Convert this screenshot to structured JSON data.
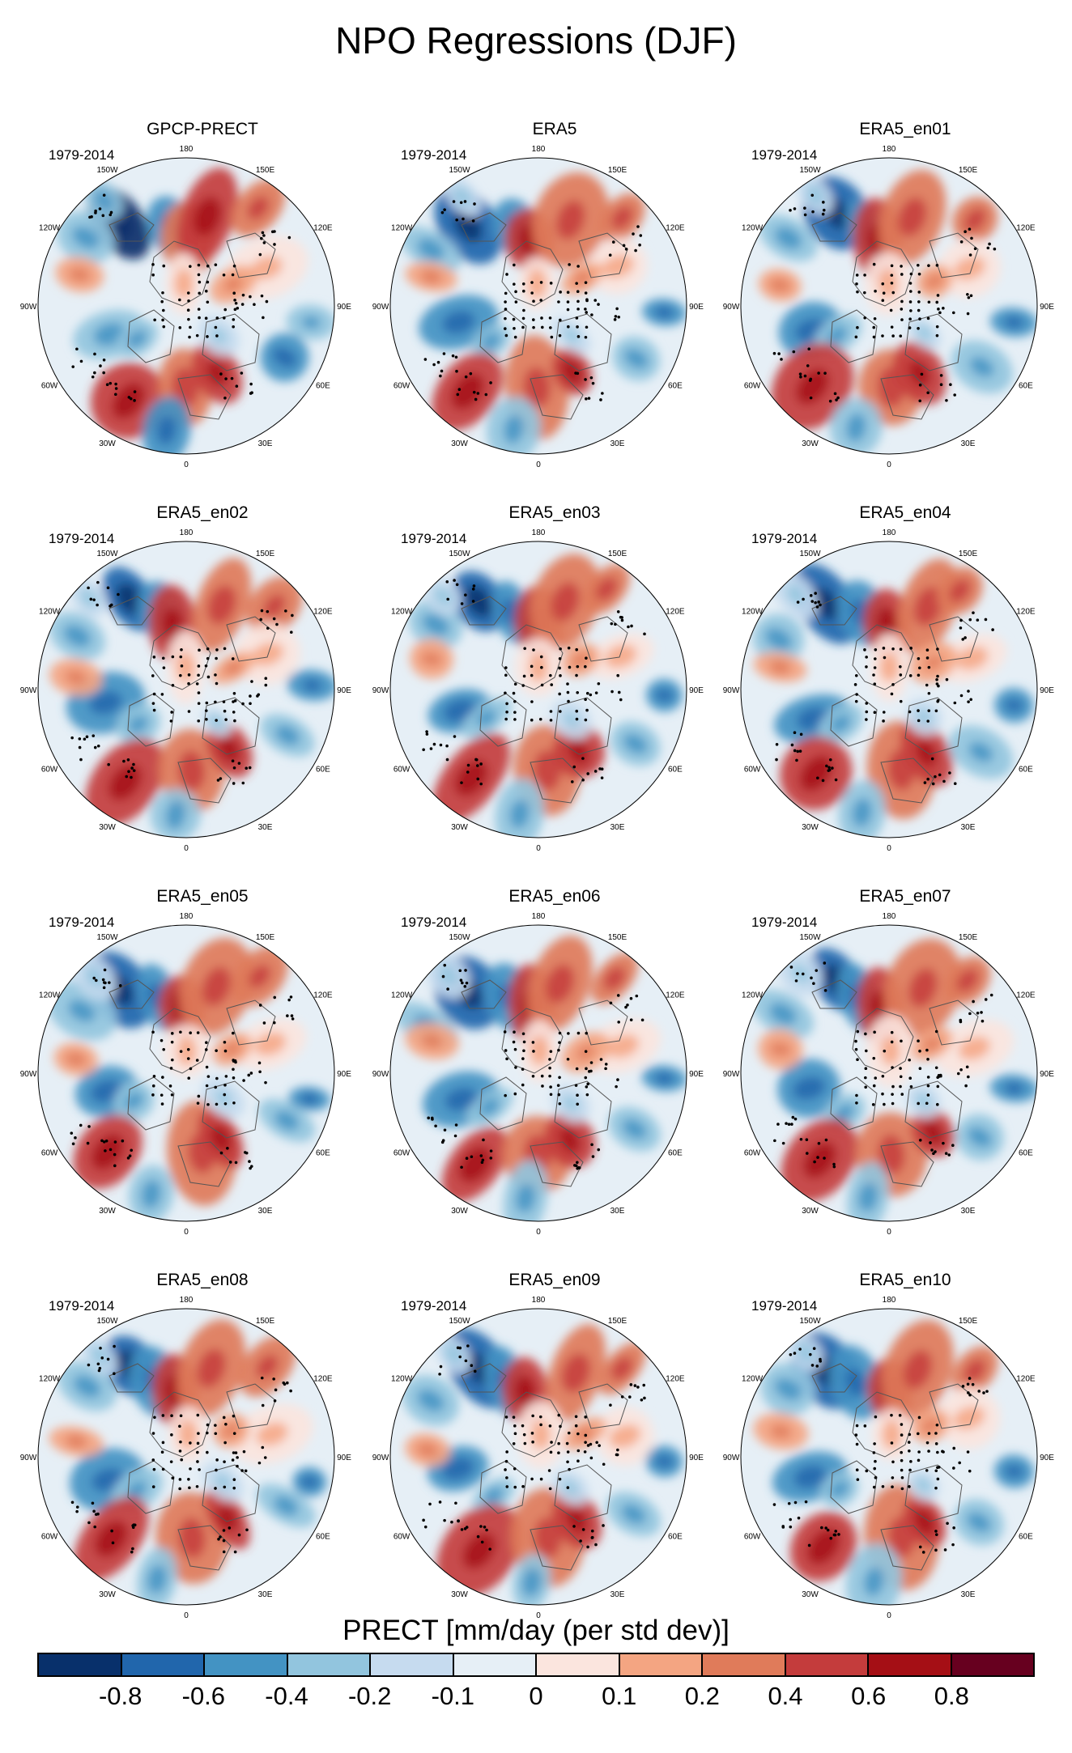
{
  "title": "NPO Regressions (DJF)",
  "colorbar": {
    "title": "PRECT [mm/day (per std dev)]",
    "levels": [
      "-0.8",
      "-0.6",
      "-0.4",
      "-0.2",
      "-0.1",
      "0",
      "0.1",
      "0.2",
      "0.4",
      "0.6",
      "0.8"
    ],
    "colors": [
      "#08306b",
      "#2166ac",
      "#4393c3",
      "#92c5de",
      "#c6dbef",
      "#e6eff6",
      "#fbe5de",
      "#f4a582",
      "#e07b5a",
      "#c43c3c",
      "#a50f15",
      "#67001f"
    ]
  },
  "chart_data": {
    "type": "polar stereographic contour maps",
    "variable": "PRECT",
    "units": "mm/day (per std dev)",
    "season": "DJF",
    "longitude_labels": [
      "180",
      "150E",
      "120E",
      "90E",
      "60E",
      "30E",
      "0",
      "30W",
      "60W",
      "90W",
      "120W",
      "150W"
    ],
    "panels": [
      {
        "name": "GPCP-PRECT",
        "period": "1979-2014"
      },
      {
        "name": "ERA5",
        "period": "1979-2014"
      },
      {
        "name": "ERA5_en01",
        "period": "1979-2014"
      },
      {
        "name": "ERA5_en02",
        "period": "1979-2014"
      },
      {
        "name": "ERA5_en03",
        "period": "1979-2014"
      },
      {
        "name": "ERA5_en04",
        "period": "1979-2014"
      },
      {
        "name": "ERA5_en05",
        "period": "1979-2014"
      },
      {
        "name": "ERA5_en06",
        "period": "1979-2014"
      },
      {
        "name": "ERA5_en07",
        "period": "1979-2014"
      },
      {
        "name": "ERA5_en08",
        "period": "1979-2014"
      },
      {
        "name": "ERA5_en09",
        "period": "1979-2014"
      },
      {
        "name": "ERA5_en10",
        "period": "1979-2014"
      }
    ]
  }
}
